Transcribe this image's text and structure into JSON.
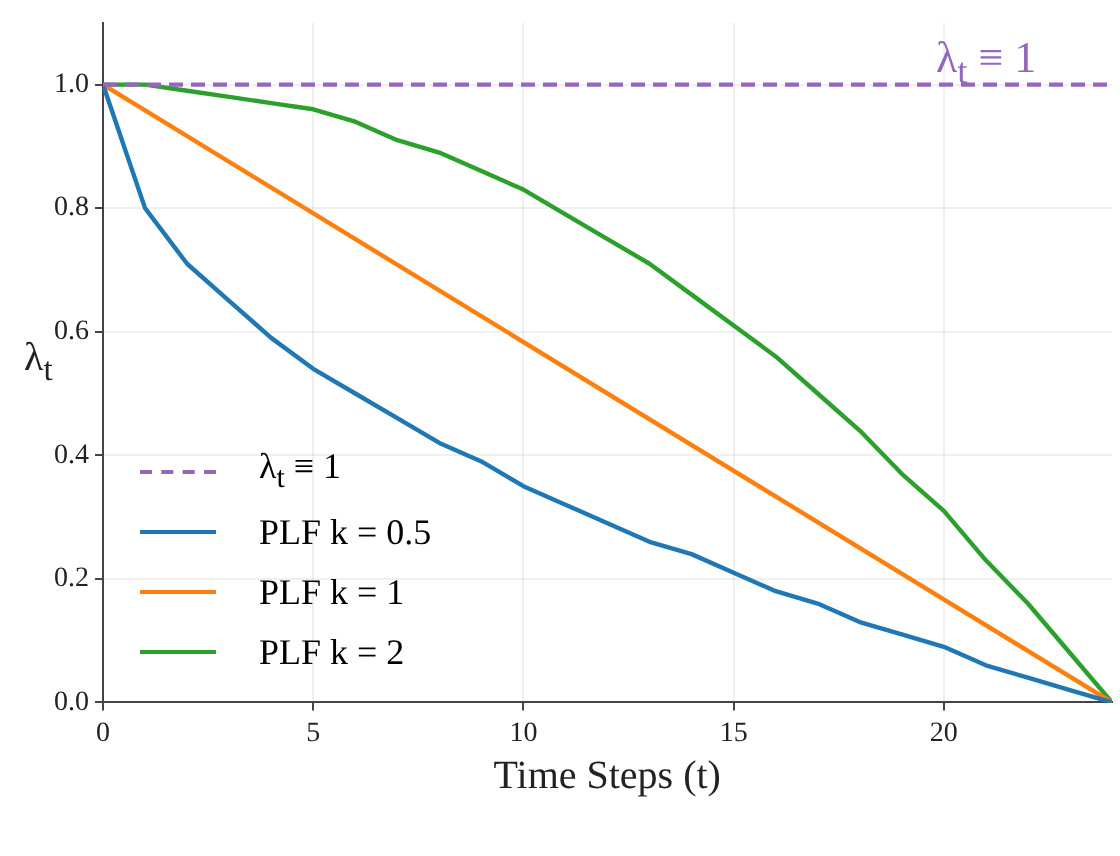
{
  "chart_data": {
    "type": "line",
    "xlabel": "Time Steps (t)",
    "ylabel": "λ$_{t}$",
    "xlim": [
      0,
      24
    ],
    "ylim": [
      0,
      1.1
    ],
    "xticks": [
      0,
      5,
      10,
      15,
      20
    ],
    "yticks": [
      {
        "value": 0,
        "label": "0.0"
      },
      {
        "value": 0.2,
        "label": "0.2"
      },
      {
        "value": 0.4,
        "label": "0.4"
      },
      {
        "value": 0.6,
        "label": "0.6"
      },
      {
        "value": 0.8,
        "label": "0.8"
      },
      {
        "value": 1,
        "label": "1.0"
      }
    ],
    "grid": true,
    "legend": "bottom left",
    "marker": "none",
    "annotations": [
      {
        "text": "λ$_{t}$ ≡ 1",
        "x": 21,
        "y": 1
      }
    ],
    "series": [
      {
        "name": "λ$_{t}$ ≡ 1",
        "color": "#9467bd",
        "line_style": "dashed",
        "x": [
          0,
          24
        ],
        "values": [
          1,
          1
        ]
      },
      {
        "name": "PLF k = 0.5",
        "color": "#1f77b4",
        "x": [
          0,
          1,
          2,
          3,
          4,
          5,
          6,
          7,
          8,
          9,
          10,
          11,
          12,
          13,
          14,
          15,
          16,
          17,
          18,
          19,
          20,
          21,
          22,
          23,
          24
        ],
        "values": [
          1,
          0.8,
          0.71,
          0.65,
          0.59,
          0.54,
          0.5,
          0.46,
          0.42,
          0.39,
          0.35,
          0.32,
          0.29,
          0.26,
          0.24,
          0.21,
          0.18,
          0.16,
          0.13,
          0.11,
          0.09,
          0.06,
          0.04,
          0.02,
          0
        ]
      },
      {
        "name": "PLF k = 1",
        "color": "#ff7f0e",
        "x": [
          0,
          24
        ],
        "values": [
          1,
          0
        ]
      },
      {
        "name": "PLF k = 2",
        "color": "#2ca02c",
        "x": [
          0,
          1,
          2,
          3,
          4,
          5,
          6,
          7,
          8,
          9,
          10,
          11,
          12,
          13,
          14,
          15,
          16,
          17,
          18,
          19,
          20,
          21,
          22,
          23,
          24
        ],
        "values": [
          1,
          1,
          0.99,
          0.98,
          0.97,
          0.96,
          0.94,
          0.91,
          0.89,
          0.86,
          0.83,
          0.79,
          0.75,
          0.71,
          0.66,
          0.61,
          0.56,
          0.5,
          0.44,
          0.37,
          0.31,
          0.23,
          0.16,
          0.08,
          0
        ]
      }
    ]
  }
}
